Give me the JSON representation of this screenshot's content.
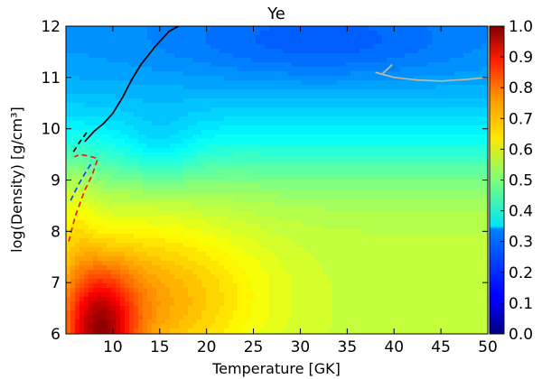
{
  "chart_data": {
    "type": "heatmap",
    "title": "Ye",
    "xlabel": "Temperature [GK]",
    "ylabel": "log(Density) [g/cm³]",
    "xlim": [
      5,
      50
    ],
    "ylim": [
      6,
      12
    ],
    "x_ticks": [
      10,
      15,
      20,
      25,
      30,
      35,
      40,
      45,
      50
    ],
    "y_ticks": [
      6,
      7,
      8,
      9,
      10,
      11,
      12
    ],
    "colorbar": {
      "colormap": "jet",
      "range": [
        0.0,
        1.0
      ],
      "ticks": [
        0.0,
        0.1,
        0.2,
        0.3,
        0.4,
        0.5,
        0.6,
        0.7,
        0.8,
        0.9,
        1.0
      ],
      "tick_labels": [
        "0.0",
        "0.1",
        "0.2",
        "0.3",
        "0.4",
        "0.5",
        "0.6",
        "0.7",
        "0.8",
        "0.9",
        "1.0"
      ]
    },
    "grid": false,
    "series": [
      {
        "style": "solid",
        "color": "#000000",
        "x": [
          7.0,
          8.0,
          9.0,
          10.0,
          11.0,
          12.0,
          13.0,
          14.5,
          16.0,
          17.0
        ],
        "y": [
          9.75,
          9.95,
          10.1,
          10.3,
          10.6,
          10.95,
          11.25,
          11.6,
          11.9,
          12.0
        ]
      },
      {
        "style": "dashed",
        "color": "#000000",
        "x": [
          5.8,
          6.5,
          7.3
        ],
        "y": [
          9.55,
          9.75,
          9.95
        ]
      },
      {
        "style": "dashed",
        "color": "#e02020",
        "x": [
          5.3,
          6.0,
          7.0,
          7.8,
          8.4,
          7.8,
          6.5,
          5.9
        ],
        "y": [
          7.8,
          8.3,
          8.8,
          9.1,
          9.42,
          9.45,
          9.5,
          9.45
        ]
      },
      {
        "style": "dashed",
        "color": "#2040ff",
        "x": [
          5.5,
          6.3,
          7.1,
          7.8
        ],
        "y": [
          8.6,
          8.9,
          9.15,
          9.35
        ]
      },
      {
        "style": "solid",
        "color": "#c8b89a",
        "x": [
          38.0,
          40.0,
          42.5,
          45.0,
          47.5,
          50.0
        ],
        "y": [
          11.1,
          11.0,
          10.95,
          10.93,
          10.96,
          11.0
        ]
      },
      {
        "style": "solid",
        "color": "#c8b89a",
        "x": [
          38.8,
          39.4,
          39.8
        ],
        "y": [
          11.08,
          11.18,
          11.25
        ]
      }
    ]
  }
}
